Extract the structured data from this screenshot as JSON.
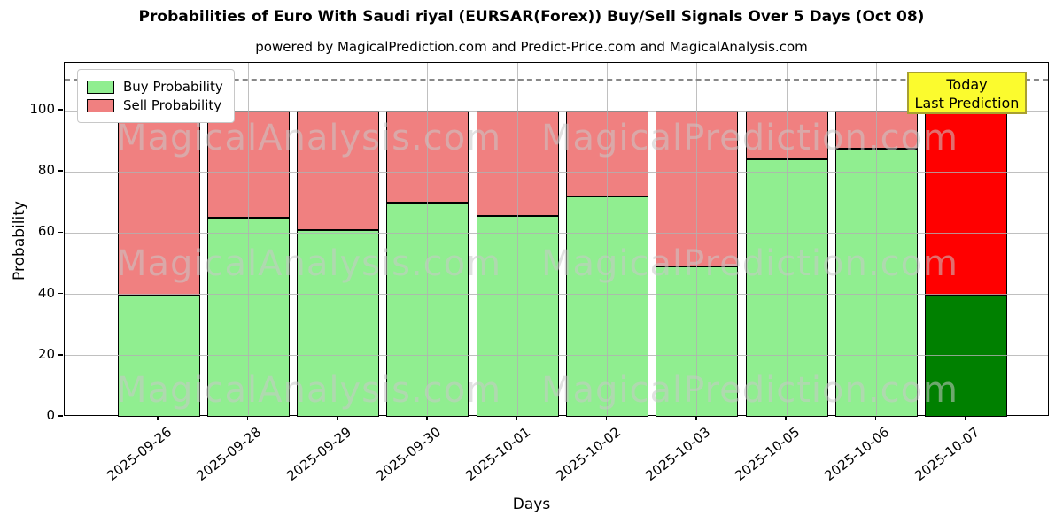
{
  "title": "Probabilities of Euro With Saudi riyal (EURSAR(Forex)) Buy/Sell Signals Over 5 Days (Oct 08)",
  "subtitle": "powered by MagicalPrediction.com and Predict-Price.com and MagicalAnalysis.com",
  "axes": {
    "xlabel": "Days",
    "ylabel": "Probability"
  },
  "legend": [
    {
      "label": "Buy Probability",
      "color": "#90ee90"
    },
    {
      "label": "Sell Probability",
      "color": "#f08080"
    }
  ],
  "annotation": {
    "line1": "Today",
    "line2": "Last Prediction",
    "bg": "#fbfb2e",
    "border": "#a8a030"
  },
  "watermarks": [
    "MagicalAnalysis.com",
    "MagicalPrediction.com"
  ],
  "chart_data": {
    "type": "bar",
    "stacked": true,
    "title": "Probabilities of Euro With Saudi riyal (EURSAR(Forex)) Buy/Sell Signals Over 5 Days (Oct 08)",
    "xlabel": "Days",
    "ylabel": "Probability",
    "categories": [
      "2025-09-26",
      "2025-09-28",
      "2025-09-29",
      "2025-09-30",
      "2025-10-01",
      "2025-10-02",
      "2025-10-03",
      "2025-10-05",
      "2025-10-06",
      "2025-10-07"
    ],
    "series": [
      {
        "name": "Buy Probability",
        "values": [
          39.5,
          65,
          61,
          70,
          65.5,
          72,
          49,
          84,
          87.5,
          39.5
        ],
        "color": "#90ee90",
        "last_bar_color": "#008000"
      },
      {
        "name": "Sell Probability",
        "values": [
          60.5,
          35,
          39,
          30,
          34.5,
          28,
          51,
          16,
          12.5,
          60.5
        ],
        "color": "#f08080",
        "last_bar_color": "#ff0000"
      }
    ],
    "yticks": [
      0,
      20,
      40,
      60,
      80,
      100
    ],
    "ylim": [
      0,
      115.6
    ],
    "dashed_line_y": 110,
    "grid": true,
    "legend_position": "upper left",
    "highlight_last_bar": true
  }
}
